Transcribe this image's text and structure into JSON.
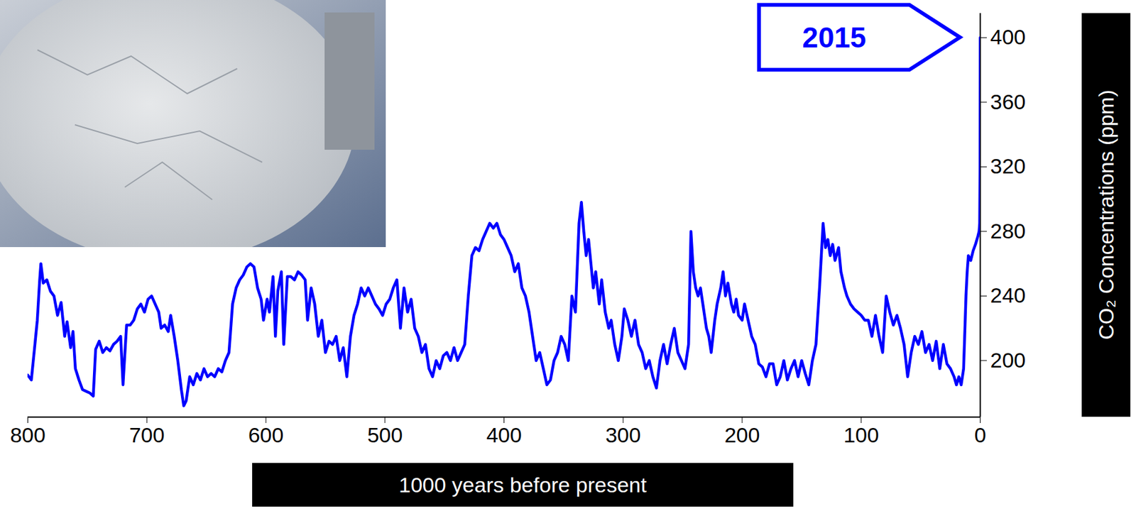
{
  "chart_data": {
    "type": "line",
    "x_label": "1000 years before present",
    "y_label": "CO₂ Concentrations (ppm)",
    "color": "#0000ff",
    "xlim": [
      800,
      0
    ],
    "xticks": [
      800,
      700,
      600,
      500,
      400,
      300,
      200,
      100,
      0
    ],
    "ylim": [
      165,
      415
    ],
    "yticks": [
      200,
      240,
      280,
      320,
      360,
      400
    ],
    "grid": false,
    "annotations": [
      {
        "text": "2015",
        "x": 0,
        "y": 400
      }
    ],
    "x": [
      800,
      797,
      794,
      792,
      790,
      789,
      787,
      784,
      781,
      778,
      775,
      772,
      769,
      767,
      764,
      762,
      760,
      757,
      754,
      751,
      748,
      745,
      743,
      740,
      737,
      734,
      731,
      728,
      725,
      722,
      720,
      717,
      714,
      711,
      708,
      705,
      702,
      699,
      696,
      693,
      690,
      688,
      685,
      682,
      680,
      677,
      674,
      671,
      669,
      667,
      664,
      661,
      658,
      655,
      652,
      649,
      646,
      643,
      640,
      637,
      634,
      631,
      628,
      625,
      622,
      619,
      616,
      613,
      610,
      607,
      604,
      602,
      599,
      597,
      594,
      592,
      590,
      587,
      585,
      582,
      579,
      576,
      573,
      570,
      567,
      565,
      562,
      559,
      556,
      553,
      550,
      547,
      544,
      541,
      538,
      535,
      532,
      529,
      526,
      523,
      520,
      517,
      514,
      511,
      508,
      505,
      502,
      499,
      496,
      493,
      490,
      487,
      484,
      481,
      478,
      475,
      472,
      469,
      466,
      463,
      460,
      457,
      454,
      451,
      448,
      445,
      442,
      439,
      436,
      433,
      430,
      427,
      424,
      421,
      418,
      415,
      412,
      409,
      406,
      403,
      400,
      397,
      394,
      391,
      388,
      385,
      382,
      379,
      376,
      373,
      370,
      367,
      364,
      361,
      358,
      355,
      352,
      349,
      346,
      343,
      340,
      337,
      335,
      333,
      331,
      329,
      327,
      325,
      323,
      320,
      318,
      315,
      312,
      310,
      307,
      304,
      301,
      299,
      296,
      293,
      290,
      287,
      284,
      281,
      278,
      275,
      272,
      269,
      266,
      263,
      260,
      257,
      254,
      251,
      248,
      245,
      243,
      241,
      239,
      237,
      235,
      233,
      230,
      228,
      226,
      223,
      221,
      218,
      216,
      214,
      212,
      209,
      207,
      205,
      203,
      200,
      198,
      195,
      192,
      189,
      186,
      183,
      180,
      177,
      174,
      171,
      168,
      165,
      162,
      159,
      156,
      153,
      150,
      147,
      144,
      141,
      138,
      135,
      132,
      130,
      128,
      126,
      124,
      122,
      119,
      117,
      114,
      112,
      109,
      106,
      103,
      100,
      97,
      94,
      91,
      88,
      85,
      82,
      79,
      76,
      73,
      70,
      67,
      64,
      61,
      58,
      55,
      52,
      49,
      46,
      43,
      40,
      37,
      34,
      31,
      28,
      25,
      22,
      20,
      18,
      16,
      14,
      12,
      11,
      10,
      8,
      6,
      4,
      2,
      1,
      0.5,
      0.2,
      0
    ],
    "values": [
      191,
      188,
      210,
      225,
      250,
      260,
      248,
      250,
      243,
      240,
      228,
      236,
      215,
      224,
      208,
      218,
      195,
      188,
      182,
      181,
      180,
      178,
      207,
      212,
      205,
      208,
      206,
      210,
      212,
      215,
      185,
      222,
      222,
      225,
      232,
      235,
      230,
      238,
      240,
      235,
      230,
      220,
      222,
      218,
      228,
      215,
      200,
      182,
      172,
      175,
      190,
      185,
      192,
      188,
      195,
      190,
      192,
      190,
      195,
      193,
      200,
      205,
      235,
      245,
      250,
      253,
      258,
      260,
      258,
      245,
      238,
      225,
      238,
      230,
      252,
      215,
      243,
      255,
      210,
      252,
      252,
      250,
      255,
      253,
      250,
      225,
      245,
      235,
      215,
      225,
      205,
      212,
      210,
      215,
      200,
      208,
      190,
      215,
      228,
      235,
      245,
      240,
      245,
      240,
      235,
      232,
      228,
      235,
      238,
      245,
      250,
      220,
      245,
      230,
      238,
      220,
      215,
      205,
      210,
      195,
      190,
      200,
      195,
      203,
      205,
      200,
      208,
      200,
      205,
      210,
      240,
      265,
      270,
      268,
      275,
      280,
      285,
      282,
      285,
      278,
      275,
      270,
      265,
      255,
      260,
      245,
      240,
      230,
      215,
      200,
      205,
      195,
      185,
      188,
      200,
      205,
      215,
      210,
      200,
      240,
      230,
      285,
      298,
      280,
      265,
      275,
      260,
      245,
      255,
      235,
      250,
      230,
      220,
      225,
      210,
      200,
      215,
      232,
      225,
      215,
      225,
      210,
      205,
      195,
      200,
      190,
      183,
      200,
      210,
      198,
      210,
      220,
      205,
      200,
      195,
      210,
      280,
      255,
      245,
      240,
      245,
      235,
      220,
      215,
      205,
      225,
      235,
      245,
      255,
      240,
      248,
      235,
      230,
      238,
      228,
      225,
      235,
      225,
      215,
      210,
      198,
      196,
      190,
      198,
      198,
      185,
      190,
      200,
      188,
      195,
      200,
      190,
      200,
      192,
      185,
      200,
      210,
      245,
      285,
      270,
      275,
      265,
      272,
      262,
      270,
      255,
      245,
      240,
      235,
      232,
      230,
      228,
      225,
      225,
      215,
      228,
      215,
      205,
      240,
      230,
      222,
      228,
      220,
      210,
      190,
      205,
      215,
      210,
      218,
      205,
      210,
      200,
      212,
      195,
      210,
      198,
      195,
      190,
      185,
      190,
      185,
      195,
      240,
      255,
      265,
      262,
      268,
      272,
      277,
      280,
      285,
      320,
      400
    ]
  }
}
